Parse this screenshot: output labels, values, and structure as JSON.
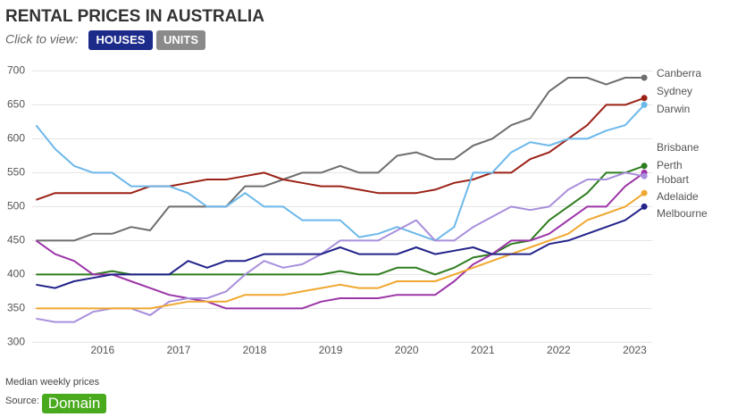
{
  "chart_data": {
    "type": "line",
    "title": "RENTAL PRICES IN AUSTRALIA",
    "x": [
      2015.125,
      2015.375,
      2015.625,
      2015.875,
      2016.125,
      2016.375,
      2016.625,
      2016.875,
      2017.125,
      2017.375,
      2017.625,
      2017.875,
      2018.125,
      2018.375,
      2018.625,
      2018.875,
      2019.125,
      2019.375,
      2019.625,
      2019.875,
      2020.125,
      2020.375,
      2020.625,
      2020.875,
      2021.125,
      2021.375,
      2021.625,
      2021.875,
      2022.125,
      2022.375,
      2022.625,
      2022.875,
      2023.125
    ],
    "xlim": [
      2015.05,
      2023.3
    ],
    "xticks": [
      2016,
      2017,
      2018,
      2019,
      2020,
      2021,
      2022,
      2023
    ],
    "ylim": [
      290,
      715
    ],
    "yticks": [
      300,
      350,
      400,
      450,
      500,
      550,
      600,
      650,
      700
    ],
    "grid": true,
    "series": [
      {
        "name": "Canberra",
        "color": "#6e6e6e",
        "values": [
          450,
          450,
          450,
          460,
          460,
          470,
          465,
          500,
          500,
          500,
          500,
          530,
          530,
          540,
          550,
          550,
          560,
          550,
          550,
          575,
          580,
          570,
          570,
          590,
          600,
          620,
          630,
          670,
          690,
          690,
          680,
          690,
          690
        ]
      },
      {
        "name": "Sydney",
        "color": "#9b2116",
        "values": [
          510,
          520,
          520,
          520,
          520,
          520,
          530,
          530,
          535,
          540,
          540,
          545,
          550,
          540,
          535,
          530,
          530,
          525,
          520,
          520,
          520,
          525,
          535,
          540,
          550,
          550,
          570,
          580,
          600,
          620,
          650,
          650,
          660
        ]
      },
      {
        "name": "Darwin",
        "color": "#6cb8ea",
        "values": [
          620,
          585,
          560,
          550,
          550,
          530,
          530,
          530,
          520,
          500,
          500,
          520,
          500,
          500,
          480,
          480,
          480,
          455,
          460,
          470,
          460,
          450,
          470,
          550,
          550,
          580,
          595,
          590,
          600,
          600,
          612,
          620,
          650
        ]
      },
      {
        "name": "Brisbane",
        "color": "#2e7d1e",
        "values": [
          400,
          400,
          400,
          400,
          405,
          400,
          400,
          400,
          400,
          400,
          400,
          400,
          400,
          400,
          400,
          400,
          405,
          400,
          400,
          410,
          410,
          400,
          410,
          425,
          430,
          445,
          450,
          480,
          500,
          520,
          550,
          550,
          560
        ]
      },
      {
        "name": "Perth",
        "color": "#9c35a8",
        "values": [
          450,
          430,
          420,
          400,
          400,
          390,
          380,
          370,
          365,
          360,
          350,
          350,
          350,
          350,
          350,
          360,
          365,
          365,
          365,
          370,
          370,
          370,
          390,
          415,
          430,
          450,
          450,
          460,
          480,
          500,
          500,
          530,
          550
        ]
      },
      {
        "name": "Hobart",
        "color": "#a88fdc",
        "values": [
          335,
          330,
          330,
          345,
          350,
          350,
          340,
          360,
          365,
          365,
          375,
          400,
          420,
          410,
          415,
          430,
          450,
          450,
          450,
          465,
          480,
          450,
          450,
          470,
          485,
          500,
          495,
          500,
          525,
          540,
          540,
          550,
          545
        ]
      },
      {
        "name": "Adelaide",
        "color": "#f0a830",
        "values": [
          350,
          350,
          350,
          350,
          350,
          350,
          350,
          355,
          360,
          360,
          360,
          370,
          370,
          370,
          375,
          380,
          385,
          380,
          380,
          390,
          390,
          390,
          400,
          410,
          420,
          430,
          440,
          450,
          460,
          480,
          490,
          500,
          520
        ]
      },
      {
        "name": "Melbourne",
        "color": "#22228a",
        "values": [
          385,
          380,
          390,
          395,
          400,
          400,
          400,
          400,
          420,
          410,
          420,
          420,
          430,
          430,
          430,
          430,
          440,
          430,
          430,
          430,
          440,
          430,
          435,
          440,
          430,
          430,
          430,
          445,
          450,
          460,
          470,
          480,
          500
        ]
      }
    ]
  },
  "controls": {
    "label": "Click to view:",
    "buttons": [
      "HOUSES",
      "UNITS"
    ]
  },
  "footer": {
    "note": "Median weekly prices",
    "source_label": "Source:",
    "source": "Domain"
  }
}
